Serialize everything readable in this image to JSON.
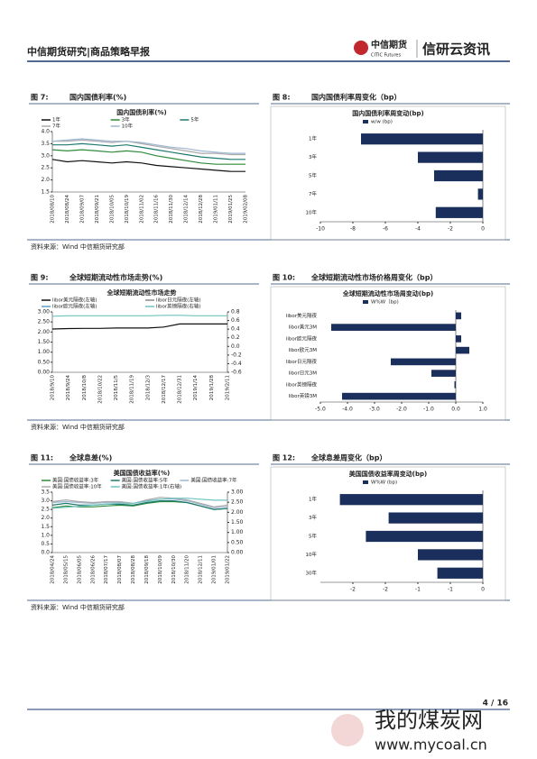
{
  "header": {
    "title": "中信期货研究|商品策略早报",
    "logo": "中信期货",
    "logo_en": "CITIC Futures",
    "brand": "信研云资讯"
  },
  "figures": [
    {
      "label": "图 7:",
      "caption": "国内国债利率(%)",
      "source": "资料来源：Wind  中信期货研究部"
    },
    {
      "label": "图 8:",
      "caption": "国内国债利率周变化（bp）",
      "source": ""
    },
    {
      "label": "图 9:",
      "caption": "全球短期流动性市场走势(%)",
      "source": "资料来源：Wind  中信期货研究部"
    },
    {
      "label": "图 10:",
      "caption": "全球短期流动性市场价格周变化（bp）",
      "source": ""
    },
    {
      "label": "图 11:",
      "caption": "全球息差(%)",
      "source": "资料来源：Wind  中信期货研究部"
    },
    {
      "label": "图 12:",
      "caption": "全球息差周变化（bp）",
      "source": ""
    }
  ],
  "chart_data": [
    {
      "type": "line",
      "title": "国内国债利率(%)",
      "categories": [
        "2018/08/10",
        "2018/08/24",
        "2018/09/07",
        "2018/09/21",
        "2018/10/05",
        "2018/10/19",
        "2018/11/02",
        "2018/11/16",
        "2018/11/30",
        "2018/12/14",
        "2018/12/28",
        "2019/01/11",
        "2019/01/25",
        "2019/02/08"
      ],
      "series": [
        {
          "name": "1年",
          "color": "#111111",
          "values": [
            2.85,
            2.75,
            2.8,
            2.75,
            2.7,
            2.75,
            2.7,
            2.6,
            2.55,
            2.5,
            2.45,
            2.4,
            2.35,
            2.35
          ]
        },
        {
          "name": "3年",
          "color": "#2e8b3a",
          "values": [
            3.25,
            3.2,
            3.25,
            3.2,
            3.15,
            3.2,
            3.15,
            3.0,
            2.9,
            2.8,
            2.7,
            2.65,
            2.65,
            2.65
          ]
        },
        {
          "name": "5年",
          "color": "#1f7a6e",
          "values": [
            3.45,
            3.45,
            3.5,
            3.45,
            3.4,
            3.45,
            3.35,
            3.25,
            3.15,
            3.05,
            2.95,
            2.9,
            2.85,
            2.85
          ]
        },
        {
          "name": "7年",
          "color": "#aaaaaa",
          "values": [
            3.6,
            3.6,
            3.65,
            3.6,
            3.55,
            3.6,
            3.5,
            3.4,
            3.3,
            3.2,
            3.1,
            3.1,
            3.05,
            3.05
          ]
        },
        {
          "name": "10年",
          "color": "#9fb7d4",
          "values": [
            3.6,
            3.65,
            3.7,
            3.65,
            3.6,
            3.6,
            3.55,
            3.45,
            3.35,
            3.3,
            3.2,
            3.15,
            3.1,
            3.1
          ]
        }
      ],
      "ylim": [
        1.5,
        4.0
      ],
      "yticks": [
        1.5,
        {
          "value": 2,
          "label": "2.0"
        },
        2.5,
        {
          "value": 3,
          "label": "3.0"
        },
        3.5,
        {
          "value": 4,
          "label": "4.0"
        }
      ]
    },
    {
      "type": "hbar",
      "title": "国内国债利率周变动(bp)",
      "legend": "w/w (bp)",
      "color": "#1b2f5c",
      "categories": [
        "1年",
        "3年",
        "5年",
        "7年",
        "10年"
      ],
      "values": [
        -7.5,
        -4,
        -3,
        -0.3,
        -2.9
      ],
      "xlim": [
        -10,
        0
      ],
      "xticks": [
        -10,
        -8,
        -6,
        -4,
        -2,
        0
      ]
    },
    {
      "type": "line",
      "title": "全球短期流动性市场走势",
      "categories": [
        "2018/9/10",
        "2018/9/24",
        "2018/10/8",
        "2018/10/22",
        "2018/11/5",
        "2018/11/19",
        "2018/12/3",
        "2018/12/17",
        "2018/12/31",
        "2019/1/14",
        "2019/1/28",
        "2019/2/11"
      ],
      "series": [
        {
          "name": "libor美元隔夜(左轴)",
          "color": "#111111",
          "values": [
            2.15,
            2.17,
            2.18,
            2.18,
            2.2,
            2.2,
            2.2,
            2.25,
            2.4,
            2.4,
            2.4,
            2.4
          ]
        },
        {
          "name": "libor日元隔夜(左轴)",
          "color": "#888888",
          "values": [
            null,
            null,
            null,
            null,
            null,
            null,
            null,
            null,
            null,
            null,
            null,
            null
          ]
        },
        {
          "name": "libor欧元隔夜(左轴)",
          "color": "#5aa0c8",
          "values": [
            null,
            null,
            null,
            null,
            null,
            null,
            null,
            null,
            null,
            null,
            null,
            null
          ]
        },
        {
          "name": "libor英镑隔夜(右轴)",
          "color": "#6fc3c0",
          "axis": "y2",
          "values": [
            0.7,
            0.71,
            0.71,
            0.71,
            0.71,
            0.71,
            0.71,
            0.72,
            0.72,
            0.71,
            0.71,
            0.71
          ]
        }
      ],
      "ylim": [
        0,
        3
      ],
      "yticks": [
        {
          "value": 0,
          "label": "0.00"
        },
        {
          "value": 0.5,
          "label": "0.50"
        },
        {
          "value": 1,
          "label": "1.00"
        },
        {
          "value": 1.5,
          "label": "1.50"
        },
        {
          "value": 2,
          "label": "2.00"
        },
        {
          "value": 2.5,
          "label": "2.50"
        },
        {
          "value": 3,
          "label": "3.00"
        }
      ],
      "y2lim": [
        -0.6,
        0.8
      ],
      "y2ticks": [
        -0.6,
        -0.4,
        -0.2,
        {
          "value": 0,
          "label": "0.0"
        },
        0.2,
        0.4,
        0.6,
        0.8
      ]
    },
    {
      "type": "hbar",
      "title": "全球短期流动性市场周变动(bp)",
      "legend": "W%W（bp)",
      "color": "#1b2f5c",
      "categories": [
        "libor美元隔夜",
        "libor美元3M",
        "libor欧元隔夜",
        "libor欧元3M",
        "libor日元隔夜",
        "libor日元3M",
        "libor英镑隔夜",
        "libor英镑3M"
      ],
      "values": [
        0.2,
        -4.6,
        0.2,
        0.5,
        -2.4,
        -0.9,
        -0.05,
        -4.2
      ],
      "xlim": [
        -5,
        1
      ],
      "xticks": [
        {
          "value": -5,
          "label": "-5.0"
        },
        {
          "value": -4,
          "label": "-4.0"
        },
        {
          "value": -3,
          "label": "-3.0"
        },
        {
          "value": -2,
          "label": "-2.0"
        },
        {
          "value": -1,
          "label": "-1.0"
        },
        {
          "value": 0,
          "label": "0.0"
        },
        {
          "value": 1,
          "label": "1.0"
        }
      ]
    },
    {
      "type": "line",
      "title": "美国国债收益率(%)",
      "categories": [
        "2018/04/24",
        "2018/05/15",
        "2018/06/05",
        "2018/06/26",
        "2018/07/17",
        "2018/08/07",
        "2018/08/28",
        "2018/09/18",
        "2018/10/09",
        "2018/10/30",
        "2018/11/20",
        "2018/12/11",
        "2019/01/01",
        "2019/01/22"
      ],
      "series": [
        {
          "name": "美国:国债收益率:3年",
          "color": "#2e8b3a",
          "values": [
            2.6,
            2.7,
            2.65,
            2.65,
            2.7,
            2.75,
            2.7,
            2.85,
            2.95,
            2.95,
            2.9,
            2.7,
            2.5,
            2.55
          ]
        },
        {
          "name": "美国:国债收益率:5年",
          "color": "#1f7a6e",
          "values": [
            2.75,
            2.85,
            2.75,
            2.75,
            2.8,
            2.8,
            2.75,
            2.9,
            3.0,
            3.0,
            2.9,
            2.7,
            2.5,
            2.55
          ]
        },
        {
          "name": "美国:国债收益率:7年",
          "color": "#9fb7d4",
          "values": [
            2.9,
            2.95,
            2.9,
            2.85,
            2.9,
            2.9,
            2.85,
            3.0,
            3.1,
            3.1,
            3.0,
            2.8,
            2.6,
            2.65
          ]
        },
        {
          "name": "美国:国债收益率:10年",
          "color": "#aaaaaa",
          "values": [
            2.95,
            3.05,
            2.95,
            2.9,
            2.95,
            2.95,
            2.85,
            3.05,
            3.2,
            3.15,
            3.05,
            2.85,
            2.65,
            2.75
          ]
        },
        {
          "name": "美国:国债收益率:1年(右轴)",
          "color": "#6fc3c0",
          "axis": "y2",
          "values": [
            2.2,
            2.25,
            2.3,
            2.35,
            2.4,
            2.45,
            2.45,
            2.55,
            2.65,
            2.7,
            2.7,
            2.65,
            2.6,
            2.6
          ]
        }
      ],
      "ylim": [
        0,
        3.5
      ],
      "yticks": [
        {
          "value": 0,
          "label": "0.0"
        },
        0.5,
        {
          "value": 1,
          "label": "1.0"
        },
        1.5,
        {
          "value": 2,
          "label": "2.0"
        },
        2.5,
        {
          "value": 3,
          "label": "3.0"
        },
        3.5
      ],
      "y2lim": [
        0,
        3
      ],
      "y2ticks": [
        {
          "value": 0,
          "label": "0.00"
        },
        {
          "value": 0.5,
          "label": "0.50"
        },
        {
          "value": 1,
          "label": "1.00"
        },
        {
          "value": 1.5,
          "label": "1.50"
        },
        {
          "value": 2,
          "label": "2.00"
        },
        {
          "value": 2.5,
          "label": "2.50"
        },
        {
          "value": 3,
          "label": "3.00"
        }
      ]
    },
    {
      "type": "hbar",
      "title": "美国国债收益率周变动(bp)",
      "legend": "W%W (bp)",
      "color": "#1b2f5c",
      "categories": [
        "1年",
        "3年",
        "5年",
        "10年",
        "30年"
      ],
      "values": [
        -2.2,
        -1.45,
        -1.8,
        -1.0,
        -0.7
      ],
      "xlim": [
        -2.5,
        0
      ],
      "xticks": [
        -2,
        {
          "value": -1.5,
          "label": "-2"
        },
        -1,
        {
          "value": -0.5,
          "label": "-1"
        },
        0
      ]
    }
  ],
  "footer": {
    "page": "4 / 16",
    "watermark": "我的煤炭网",
    "url": "www.mycoal.cn"
  }
}
